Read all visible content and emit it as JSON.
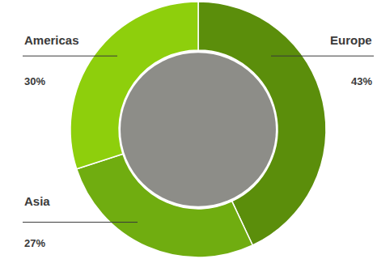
{
  "chart_data": {
    "type": "pie",
    "categories": [
      "Europe",
      "Asia",
      "Americas"
    ],
    "values": [
      43,
      27,
      30
    ],
    "value_labels": [
      "43%",
      "27%",
      "30%"
    ],
    "colors": [
      "#5b8e0b",
      "#70ad10",
      "#8ecf0c"
    ],
    "data_labels": true
  }
}
